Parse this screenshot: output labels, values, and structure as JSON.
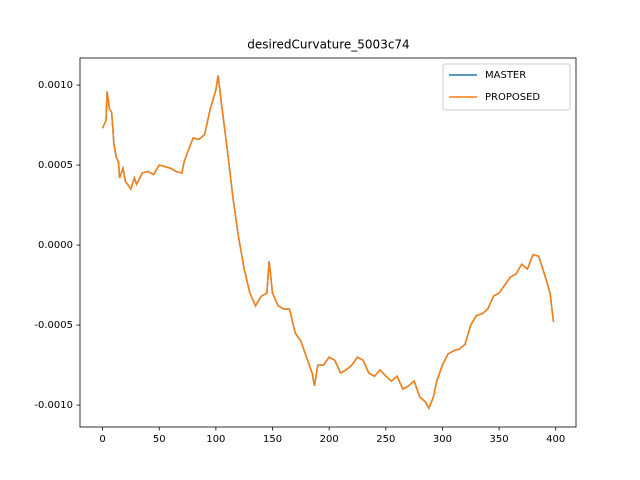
{
  "chart_data": {
    "type": "line",
    "title": "desiredCurvature_5003c74",
    "x": [
      0,
      3,
      4,
      6,
      8,
      10,
      12,
      14,
      15,
      18,
      20,
      25,
      28,
      30,
      35,
      40,
      45,
      50,
      55,
      60,
      65,
      70,
      72,
      75,
      80,
      85,
      90,
      95,
      100,
      102,
      105,
      110,
      115,
      120,
      125,
      130,
      135,
      140,
      145,
      147,
      150,
      155,
      160,
      165,
      170,
      175,
      180,
      185,
      187,
      190,
      195,
      200,
      205,
      210,
      215,
      220,
      225,
      230,
      235,
      240,
      245,
      250,
      255,
      260,
      265,
      270,
      275,
      280,
      285,
      288,
      292,
      295,
      300,
      305,
      310,
      315,
      320,
      325,
      330,
      335,
      340,
      345,
      350,
      355,
      360,
      365,
      370,
      375,
      380,
      385,
      390,
      395,
      398
    ],
    "series": [
      {
        "name": "MASTER",
        "color": "#1f77b4",
        "values": [
          0.00073,
          0.00078,
          0.00096,
          0.00085,
          0.00083,
          0.00063,
          0.00055,
          0.00052,
          0.00042,
          0.00048,
          0.0004,
          0.00035,
          0.00042,
          0.00038,
          0.00045,
          0.00046,
          0.00044,
          0.0005,
          0.00049,
          0.00048,
          0.00046,
          0.00045,
          0.00052,
          0.00058,
          0.00067,
          0.00066,
          0.00069,
          0.00085,
          0.00097,
          0.00106,
          0.00088,
          0.0006,
          0.0003,
          5e-05,
          -0.00015,
          -0.0003,
          -0.00038,
          -0.00032,
          -0.0003,
          -0.0001,
          -0.0003,
          -0.00038,
          -0.0004,
          -0.0004,
          -0.00055,
          -0.0006,
          -0.0007,
          -0.0008,
          -0.00088,
          -0.00075,
          -0.00075,
          -0.0007,
          -0.00072,
          -0.0008,
          -0.00078,
          -0.00075,
          -0.0007,
          -0.00072,
          -0.0008,
          -0.00082,
          -0.00078,
          -0.00082,
          -0.00085,
          -0.00082,
          -0.0009,
          -0.00088,
          -0.00085,
          -0.00095,
          -0.00098,
          -0.00102,
          -0.00095,
          -0.00085,
          -0.00075,
          -0.00068,
          -0.00066,
          -0.00065,
          -0.00062,
          -0.0005,
          -0.00044,
          -0.00043,
          -0.0004,
          -0.00032,
          -0.0003,
          -0.00025,
          -0.0002,
          -0.00018,
          -0.00012,
          -0.00015,
          -6e-05,
          -7e-05,
          -0.00018,
          -0.0003,
          -0.00048
        ]
      },
      {
        "name": "PROPOSED",
        "color": "#ff7f0e",
        "values": [
          0.00073,
          0.00078,
          0.00096,
          0.00085,
          0.00083,
          0.00063,
          0.00055,
          0.00052,
          0.00042,
          0.00048,
          0.0004,
          0.00035,
          0.00042,
          0.00038,
          0.00045,
          0.00046,
          0.00044,
          0.0005,
          0.00049,
          0.00048,
          0.00046,
          0.00045,
          0.00052,
          0.00058,
          0.00067,
          0.00066,
          0.00069,
          0.00085,
          0.00097,
          0.00106,
          0.00088,
          0.0006,
          0.0003,
          5e-05,
          -0.00015,
          -0.0003,
          -0.00038,
          -0.00032,
          -0.0003,
          -0.0001,
          -0.0003,
          -0.00038,
          -0.0004,
          -0.0004,
          -0.00055,
          -0.0006,
          -0.0007,
          -0.0008,
          -0.00088,
          -0.00075,
          -0.00075,
          -0.0007,
          -0.00072,
          -0.0008,
          -0.00078,
          -0.00075,
          -0.0007,
          -0.00072,
          -0.0008,
          -0.00082,
          -0.00078,
          -0.00082,
          -0.00085,
          -0.00082,
          -0.0009,
          -0.00088,
          -0.00085,
          -0.00095,
          -0.00098,
          -0.00102,
          -0.00095,
          -0.00085,
          -0.00075,
          -0.00068,
          -0.00066,
          -0.00065,
          -0.00062,
          -0.0005,
          -0.00044,
          -0.00043,
          -0.0004,
          -0.00032,
          -0.0003,
          -0.00025,
          -0.0002,
          -0.00018,
          -0.00012,
          -0.00015,
          -6e-05,
          -7e-05,
          -0.00018,
          -0.0003,
          -0.00048
        ]
      }
    ],
    "xlim": [
      -19.95,
      417.9
    ],
    "xticks": [
      0,
      50,
      100,
      150,
      200,
      250,
      300,
      350,
      400
    ],
    "ylim": [
      -0.001137,
      0.001169
    ],
    "yticks": [
      {
        "value": -0.001,
        "label": "-0.0010"
      },
      {
        "value": -0.0005,
        "label": "-0.0005"
      },
      {
        "value": 0,
        "label": "0.0000"
      },
      {
        "value": 0.0005,
        "label": "0.0005"
      },
      {
        "value": 0.001,
        "label": "0.0010"
      }
    ],
    "legend": "upper right"
  }
}
